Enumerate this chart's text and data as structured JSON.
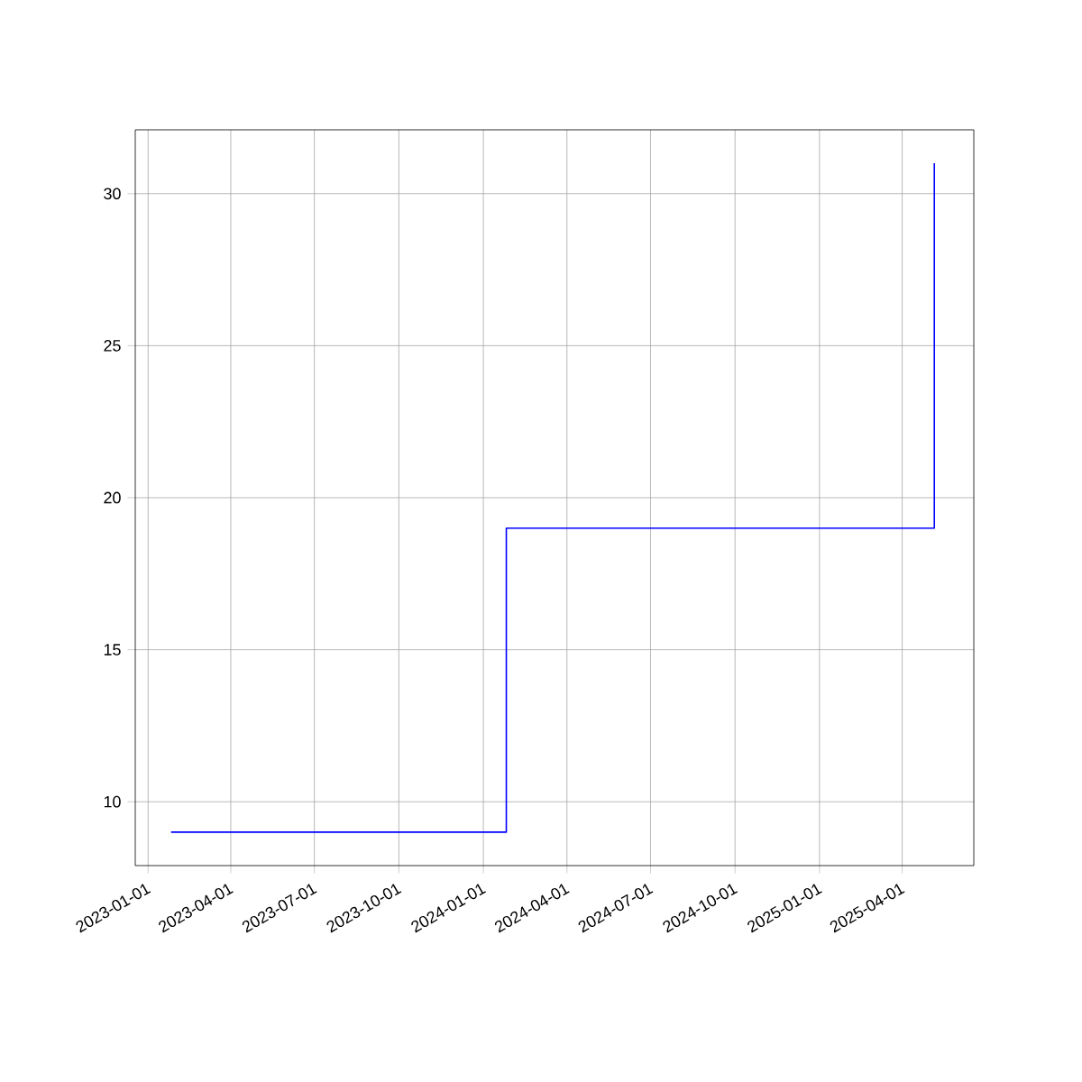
{
  "chart_data": {
    "type": "step",
    "x": [
      "2023-01-26",
      "2024-01-26",
      "2025-05-06"
    ],
    "series": [
      {
        "color": "#0000ff",
        "values": [
          9,
          19,
          31
        ]
      }
    ],
    "xlim": [
      "2022-12-18",
      "2025-06-18"
    ],
    "ylim": [
      7.9,
      32.1
    ],
    "xticks": [
      "2023-01-01",
      "2023-04-01",
      "2023-07-01",
      "2023-10-01",
      "2024-01-01",
      "2024-04-01",
      "2024-07-01",
      "2024-10-01",
      "2025-01-01",
      "2025-04-01"
    ],
    "yticks": [
      10,
      15,
      20,
      25,
      30
    ],
    "grid": true
  }
}
